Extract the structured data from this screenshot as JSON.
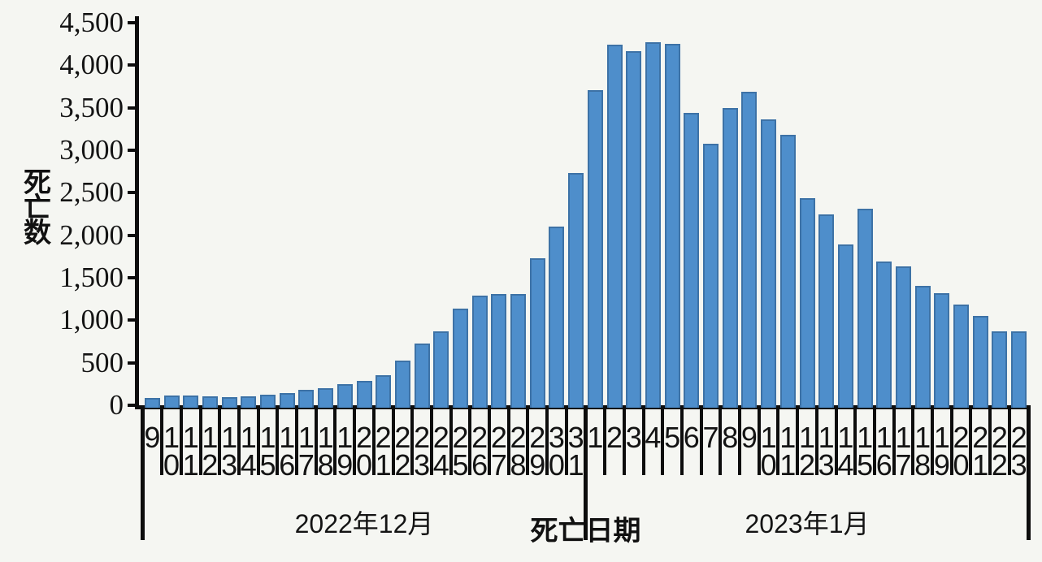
{
  "chart_data": {
    "type": "bar",
    "title": "",
    "ylabel": "死亡数",
    "xlabel": "死亡日期",
    "ylim": [
      0,
      4500
    ],
    "ytick_step": 500,
    "ytick_labels": [
      "0",
      "500",
      "1,000",
      "1,500",
      "2,000",
      "2,500",
      "3,000",
      "3,500",
      "4,000",
      "4,500"
    ],
    "grid": false,
    "legend": "none",
    "bar_color": "#4e8ecb",
    "axis_color": "#0d0d0d",
    "month_groups": [
      {
        "label": "2022年12月",
        "count": 23
      },
      {
        "label": "2023年1月",
        "count": 23
      }
    ],
    "x_labels": [
      "9",
      "10",
      "11",
      "12",
      "13",
      "14",
      "15",
      "16",
      "17",
      "18",
      "19",
      "20",
      "21",
      "22",
      "23",
      "24",
      "25",
      "26",
      "27",
      "28",
      "29",
      "30",
      "31",
      "1",
      "2",
      "3",
      "4",
      "5",
      "6",
      "7",
      "8",
      "9",
      "10",
      "11",
      "12",
      "13",
      "14",
      "15",
      "16",
      "17",
      "18",
      "19",
      "20",
      "21",
      "22",
      "23"
    ],
    "values": [
      90,
      110,
      110,
      105,
      100,
      105,
      125,
      145,
      180,
      200,
      245,
      285,
      355,
      525,
      725,
      865,
      1135,
      1290,
      1310,
      1310,
      1725,
      2105,
      2735,
      3710,
      4240,
      4160,
      4270,
      4255,
      3435,
      3080,
      3500,
      3690,
      3365,
      3185,
      2440,
      2245,
      1890,
      2310,
      1695,
      1630,
      1405,
      1320,
      1185,
      1055,
      865,
      870
    ]
  }
}
